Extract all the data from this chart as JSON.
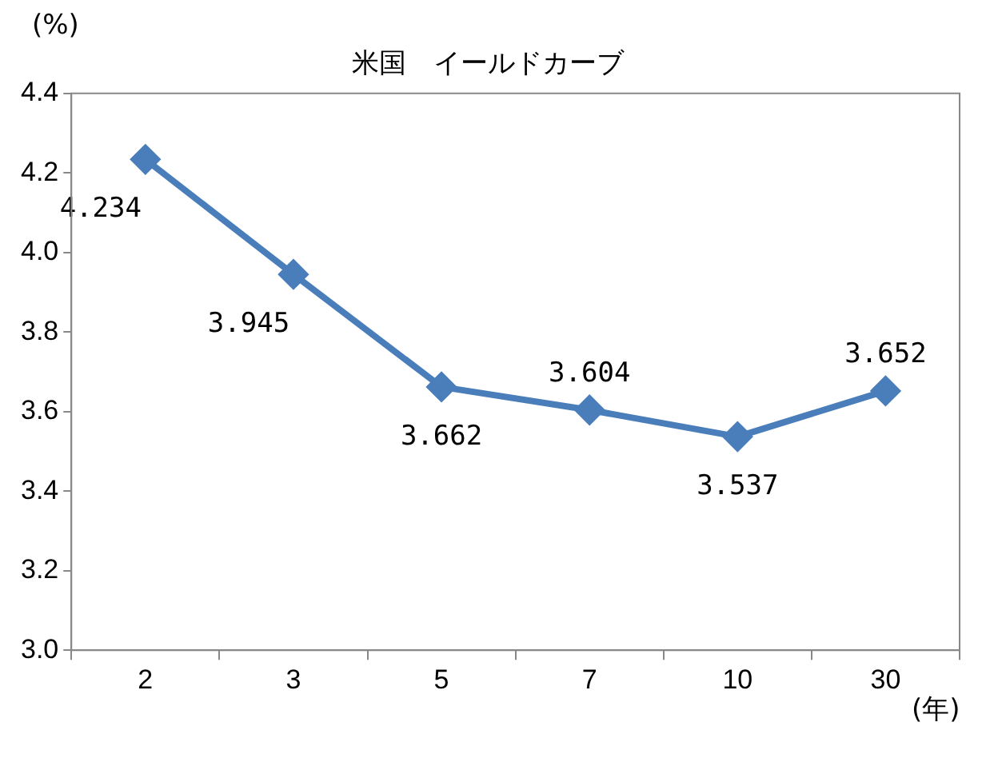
{
  "chart_data": {
    "type": "line",
    "title": "米国　イールドカーブ",
    "ylabel": "(%)",
    "xlabel": "(年)",
    "categories": [
      "2",
      "3",
      "5",
      "7",
      "10",
      "30"
    ],
    "series": [
      {
        "color": "#4a7ebb",
        "values": [
          4.234,
          3.945,
          3.662,
          3.604,
          3.537,
          3.652
        ]
      }
    ],
    "ylim": [
      3.0,
      4.4
    ],
    "yticks": [
      {
        "value": 3.0,
        "label": "3.0"
      },
      {
        "value": 3.2,
        "label": "3.2"
      },
      {
        "value": 3.4,
        "label": "3.4"
      },
      {
        "value": 3.6,
        "label": "3.6"
      },
      {
        "value": 3.8,
        "label": "3.8"
      },
      {
        "value": 4.0,
        "label": "4.0"
      },
      {
        "value": 4.2,
        "label": "4.2"
      },
      {
        "value": 4.4,
        "label": "4.4"
      }
    ],
    "data_labels": true,
    "grid": false,
    "legend": false,
    "marker": "diamond",
    "line_style": "solid"
  }
}
